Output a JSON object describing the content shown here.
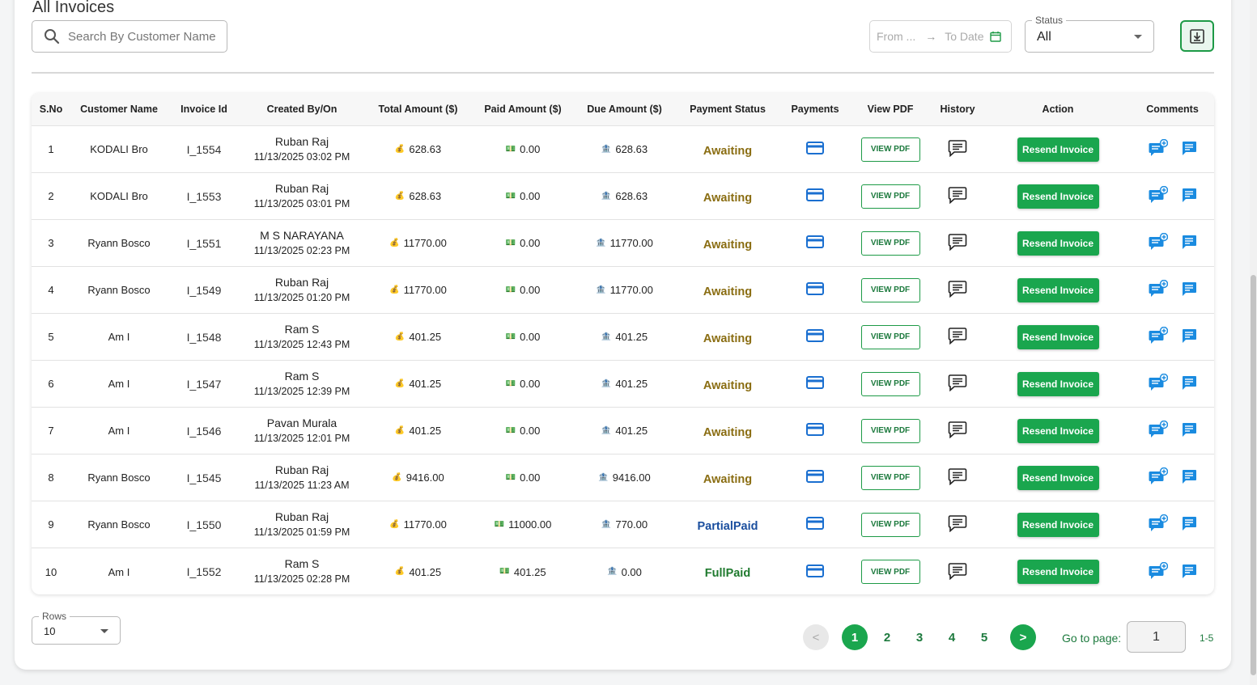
{
  "page": {
    "title": "All Invoices"
  },
  "search": {
    "placeholder": "Search By Customer Name"
  },
  "date_range": {
    "from_placeholder": "From ...",
    "to_placeholder": "To Date",
    "arrow": "→"
  },
  "status_filter": {
    "label": "Status",
    "value": "All"
  },
  "colors": {
    "accent_green": "#1aa64e",
    "awaiting": "#8a6d12",
    "partial": "#1a4e9e",
    "full": "#1f7a2e"
  },
  "icons": {
    "total": "money-bag-icon",
    "paid": "cash-icon",
    "due": "bank-icon",
    "payments": "credit-card-icon",
    "history": "chat-bubble-icon",
    "add_comment": "add-comment-icon",
    "view_comments": "comment-icon",
    "download": "download-icon"
  },
  "table": {
    "columns": [
      "S.No",
      "Customer Name",
      "Invoice Id",
      "Created By/On",
      "Total Amount ($)",
      "Paid Amount ($)",
      "Due Amount ($)",
      "Payment Status",
      "Payments",
      "View PDF",
      "History",
      "Action",
      "Comments"
    ],
    "view_pdf_label": "VIEW PDF",
    "resend_label": "Resend Invoice",
    "rows": [
      {
        "sno": "1",
        "customer": "KODALI Bro",
        "invoice": "I_1554",
        "created_by": "Ruban Raj",
        "created_on": "11/13/2025 03:02 PM",
        "total": "628.63",
        "paid": "0.00",
        "due": "628.63",
        "status": "Awaiting",
        "status_key": "awaiting"
      },
      {
        "sno": "2",
        "customer": "KODALI Bro",
        "invoice": "I_1553",
        "created_by": "Ruban Raj",
        "created_on": "11/13/2025 03:01 PM",
        "total": "628.63",
        "paid": "0.00",
        "due": "628.63",
        "status": "Awaiting",
        "status_key": "awaiting"
      },
      {
        "sno": "3",
        "customer": "Ryann Bosco",
        "invoice": "I_1551",
        "created_by": "M S NARAYANA",
        "created_on": "11/13/2025 02:23 PM",
        "total": "11770.00",
        "paid": "0.00",
        "due": "11770.00",
        "status": "Awaiting",
        "status_key": "awaiting"
      },
      {
        "sno": "4",
        "customer": "Ryann Bosco",
        "invoice": "I_1549",
        "created_by": "Ruban Raj",
        "created_on": "11/13/2025 01:20 PM",
        "total": "11770.00",
        "paid": "0.00",
        "due": "11770.00",
        "status": "Awaiting",
        "status_key": "awaiting"
      },
      {
        "sno": "5",
        "customer": "Am I",
        "invoice": "I_1548",
        "created_by": "Ram S",
        "created_on": "11/13/2025 12:43 PM",
        "total": "401.25",
        "paid": "0.00",
        "due": "401.25",
        "status": "Awaiting",
        "status_key": "awaiting"
      },
      {
        "sno": "6",
        "customer": "Am I",
        "invoice": "I_1547",
        "created_by": "Ram S",
        "created_on": "11/13/2025 12:39 PM",
        "total": "401.25",
        "paid": "0.00",
        "due": "401.25",
        "status": "Awaiting",
        "status_key": "awaiting"
      },
      {
        "sno": "7",
        "customer": "Am I",
        "invoice": "I_1546",
        "created_by": "Pavan Murala",
        "created_on": "11/13/2025 12:01 PM",
        "total": "401.25",
        "paid": "0.00",
        "due": "401.25",
        "status": "Awaiting",
        "status_key": "awaiting"
      },
      {
        "sno": "8",
        "customer": "Ryann Bosco",
        "invoice": "I_1545",
        "created_by": "Ruban Raj",
        "created_on": "11/13/2025 11:23 AM",
        "total": "9416.00",
        "paid": "0.00",
        "due": "9416.00",
        "status": "Awaiting",
        "status_key": "awaiting"
      },
      {
        "sno": "9",
        "customer": "Ryann Bosco",
        "invoice": "I_1550",
        "created_by": "Ruban Raj",
        "created_on": "11/13/2025 01:59 PM",
        "total": "11770.00",
        "paid": "11000.00",
        "due": "770.00",
        "status": "PartialPaid",
        "status_key": "partial"
      },
      {
        "sno": "10",
        "customer": "Am I",
        "invoice": "I_1552",
        "created_by": "Ram S",
        "created_on": "11/13/2025 02:28 PM",
        "total": "401.25",
        "paid": "401.25",
        "due": "0.00",
        "status": "FullPaid",
        "status_key": "full"
      }
    ]
  },
  "footer": {
    "rows_label": "Rows",
    "rows_value": "10",
    "prev": "<",
    "next": ">",
    "pages": [
      "1",
      "2",
      "3",
      "4",
      "5"
    ],
    "active_page": "1",
    "goto_label": "Go to page:",
    "goto_value": "1",
    "range": "1-5"
  }
}
